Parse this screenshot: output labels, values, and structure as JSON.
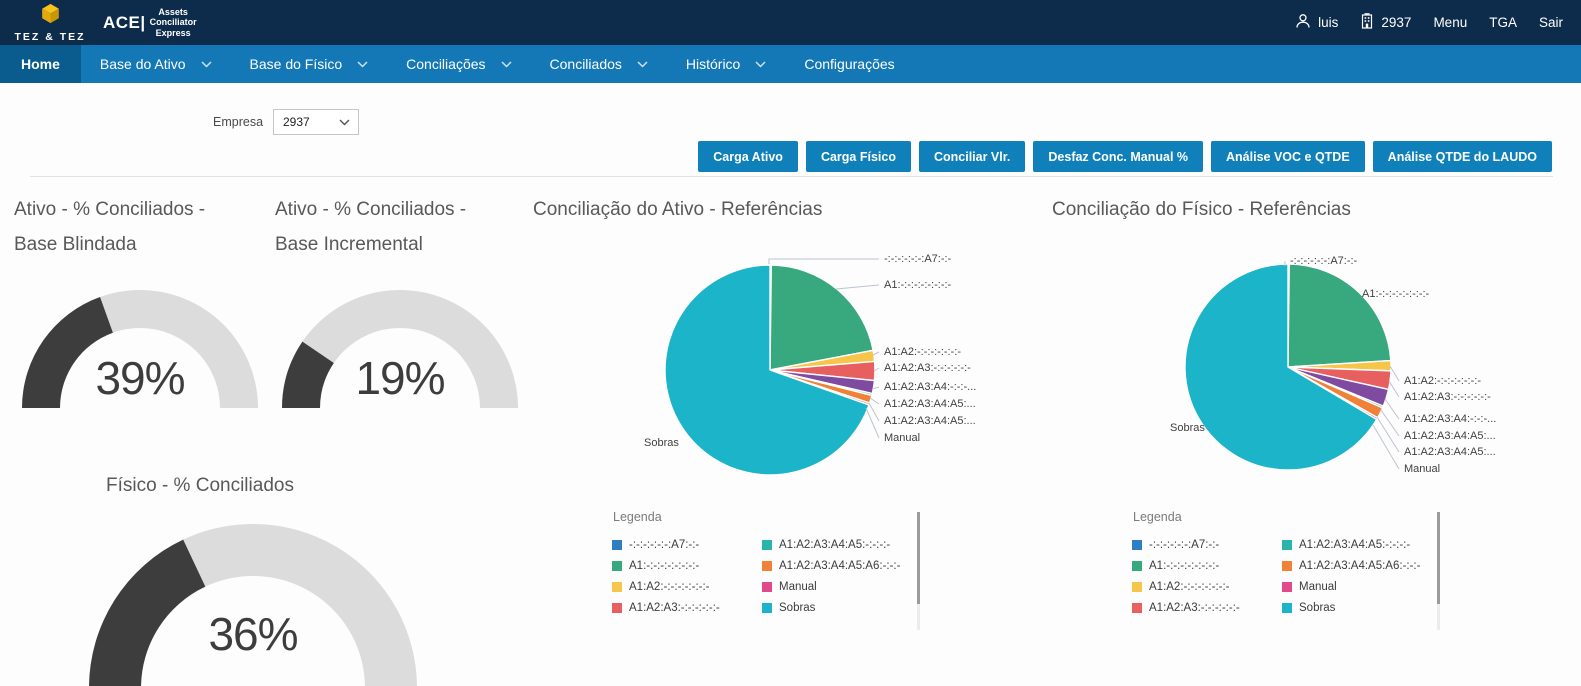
{
  "topbar": {
    "logo_title": "TEZ & TEZ",
    "brand_abbr": "ACE|",
    "brand_lines": [
      "Assets",
      "Conciliator",
      "Express"
    ],
    "user": "luis",
    "company": "2937",
    "menu": "Menu",
    "tga": "TGA",
    "sair": "Sair"
  },
  "nav": {
    "items": [
      {
        "label": "Home",
        "active": true,
        "chevron": false
      },
      {
        "label": "Base do Ativo",
        "active": false,
        "chevron": true
      },
      {
        "label": "Base do Físico",
        "active": false,
        "chevron": true
      },
      {
        "label": "Conciliações",
        "active": false,
        "chevron": true
      },
      {
        "label": "Conciliados",
        "active": false,
        "chevron": true
      },
      {
        "label": "Histórico",
        "active": false,
        "chevron": true
      },
      {
        "label": "Configurações",
        "active": false,
        "chevron": false
      }
    ]
  },
  "filters": {
    "empresa_label": "Empresa",
    "empresa_value": "2937"
  },
  "actions": [
    "Carga Ativo",
    "Carga Físico",
    "Conciliar Vlr.",
    "Desfaz Conc. Manual %",
    "Análise VOC e QTDE",
    "Análise QTDE do LAUDO"
  ],
  "colors": {
    "topbar_bg": "#0d2b4a",
    "nav_bg": "#1478b6",
    "nav_active_bg": "#0b5c8e",
    "button_bg": "#0f80b9",
    "gauge_fill": "#3d3d3d",
    "gauge_track": "#dcdcdc"
  },
  "chart_data": [
    {
      "id": "gauge-ativo-blindada",
      "type": "gauge",
      "title": "Ativo - % Conciliados - Base Blindada",
      "title_lines": [
        "Ativo - % Conciliados -",
        "Base Blindada"
      ],
      "value": 39,
      "display": "39%",
      "min": 0,
      "max": 100,
      "fill_color": "#3d3d3d",
      "track_color": "#dcdcdc"
    },
    {
      "id": "gauge-ativo-incremental",
      "type": "gauge",
      "title": "Ativo - % Conciliados - Base Incremental",
      "title_lines": [
        "Ativo - % Conciliados -",
        "Base Incremental"
      ],
      "value": 19,
      "display": "19%",
      "min": 0,
      "max": 100,
      "fill_color": "#3d3d3d",
      "track_color": "#dcdcdc"
    },
    {
      "id": "gauge-fisico",
      "type": "gauge",
      "title": "Físico - % Conciliados",
      "title_lines": [
        "Físico - % Conciliados"
      ],
      "value": 36,
      "display": "36%",
      "min": 0,
      "max": 100,
      "fill_color": "#3d3d3d",
      "track_color": "#dcdcdc"
    },
    {
      "id": "pie-ativo-referencias",
      "type": "pie",
      "title": "Conciliação do Ativo - Referências",
      "legend_title": "Legenda",
      "categories": [
        "-:-:-:-:-:-:A7:-:-",
        "A1:-:-:-:-:-:-:-:-",
        "A1:A2:-:-:-:-:-:-:-",
        "A1:A2:A3:-:-:-:-:-:-",
        "A1:A2:A3:A4:-:-:-:-:-",
        "A1:A2:A3:A4:A5:-:-:-:-",
        "A1:A2:A3:A4:A5:A6:-:-:-",
        "Manual",
        "Sobras"
      ],
      "values": [
        0.2,
        21.8,
        1.7,
        2.9,
        2.0,
        0.3,
        1.2,
        0.3,
        69.6
      ],
      "colors": [
        "#2d7dc1",
        "#38a87f",
        "#f6c64a",
        "#e75f5f",
        "#7f4ba0",
        "#2ab5ab",
        "#ef8138",
        "#e2498a",
        "#1cb4c9"
      ],
      "callout_labels": [
        "-:-:-:-:-:-:A7:-:-",
        "A1:-:-:-:-:-:-:-:-",
        "A1:A2:-:-:-:-:-:-:-",
        "A1:A2:A3:-:-:-:-:-:-",
        "A1:A2:A3:A4:-:-:-...",
        "A1:A2:A3:A4:A5:...",
        "A1:A2:A3:A4:A5:...",
        "Manual",
        "Sobras"
      ],
      "legend_indices": [
        0,
        1,
        2,
        3,
        5,
        6,
        7,
        8
      ],
      "legend_position": "bottom"
    },
    {
      "id": "pie-fisico-referencias",
      "type": "pie",
      "title": "Conciliação do Físico - Referências",
      "legend_title": "Legenda",
      "categories": [
        "-:-:-:-:-:-:A7:-:-",
        "A1:-:-:-:-:-:-:-:-",
        "A1:A2:-:-:-:-:-:-:-",
        "A1:A2:A3:-:-:-:-:-:-",
        "A1:A2:A3:A4:-:-:-:-:-",
        "A1:A2:A3:A4:A5:-:-:-:-",
        "A1:A2:A3:A4:A5:A6:-:-:-",
        "Manual",
        "Sobras"
      ],
      "values": [
        0.2,
        23.8,
        1.6,
        2.9,
        2.7,
        0.3,
        1.7,
        0.3,
        66.5
      ],
      "colors": [
        "#2d7dc1",
        "#38a87f",
        "#f6c64a",
        "#e75f5f",
        "#7f4ba0",
        "#2ab5ab",
        "#ef8138",
        "#e2498a",
        "#1cb4c9"
      ],
      "callout_labels": [
        "-:-:-:-:-:-:A7:-:-",
        "A1:-:-:-:-:-:-:-:-",
        "A1:A2:-:-:-:-:-:-:-",
        "A1:A2:A3:-:-:-:-:-:-",
        "A1:A2:A3:A4:-:-:-...",
        "A1:A2:A3:A4:A5:...",
        "A1:A2:A3:A4:A5:...",
        "Manual",
        "Sobras"
      ],
      "legend_indices": [
        0,
        1,
        2,
        3,
        5,
        6,
        7,
        8
      ],
      "legend_position": "bottom"
    }
  ]
}
